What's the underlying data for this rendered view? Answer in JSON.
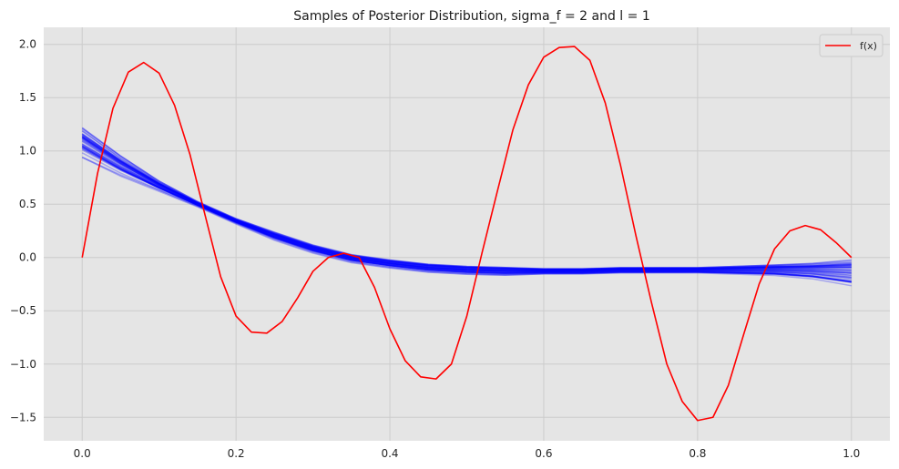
{
  "chart_data": {
    "type": "line",
    "title": "Samples of Posterior Distribution, sigma_f = 2 and l = 1",
    "xlabel": "",
    "ylabel": "",
    "xlim": [
      -0.05,
      1.05
    ],
    "ylim": [
      -1.72,
      2.16
    ],
    "xticks": [
      0.0,
      0.2,
      0.4,
      0.6,
      0.8,
      1.0
    ],
    "xtick_labels": [
      "0.0",
      "0.2",
      "0.4",
      "0.6",
      "0.8",
      "1.0"
    ],
    "yticks": [
      -1.5,
      -1.0,
      -0.5,
      0.0,
      0.5,
      1.0,
      1.5,
      2.0
    ],
    "ytick_labels": [
      "−1.5",
      "−1.0",
      "−0.5",
      "0.0",
      "0.5",
      "1.0",
      "1.5",
      "2.0"
    ],
    "grid": true,
    "legend_position": "top-right",
    "series": [
      {
        "name": "f(x)",
        "color": "#ff0000",
        "x": [
          0.0,
          0.02,
          0.04,
          0.06,
          0.08,
          0.1,
          0.12,
          0.14,
          0.16,
          0.18,
          0.2,
          0.22,
          0.24,
          0.26,
          0.28,
          0.3,
          0.32,
          0.34,
          0.36,
          0.38,
          0.4,
          0.42,
          0.44,
          0.46,
          0.48,
          0.5,
          0.52,
          0.54,
          0.56,
          0.58,
          0.6,
          0.62,
          0.64,
          0.66,
          0.68,
          0.7,
          0.72,
          0.74,
          0.76,
          0.78,
          0.8,
          0.82,
          0.84,
          0.86,
          0.88,
          0.9,
          0.92,
          0.94,
          0.96,
          0.98,
          1.0
        ],
        "y": [
          0.0,
          0.79,
          1.4,
          1.74,
          1.83,
          1.73,
          1.43,
          0.97,
          0.39,
          -0.18,
          -0.55,
          -0.7,
          -0.71,
          -0.6,
          -0.38,
          -0.13,
          0.0,
          0.04,
          0.0,
          -0.28,
          -0.67,
          -0.97,
          -1.12,
          -1.14,
          -1.0,
          -0.55,
          0.05,
          0.63,
          1.2,
          1.62,
          1.88,
          1.97,
          1.98,
          1.85,
          1.45,
          0.86,
          0.2,
          -0.42,
          -1.0,
          -1.35,
          -1.53,
          -1.5,
          -1.2,
          -0.72,
          -0.25,
          0.08,
          0.25,
          0.3,
          0.26,
          0.14,
          0.0
        ]
      }
    ],
    "samples": {
      "color": "#0000ff",
      "count": 40,
      "x": [
        0.0,
        0.05,
        0.1,
        0.15,
        0.2,
        0.25,
        0.3,
        0.35,
        0.4,
        0.45,
        0.5,
        0.55,
        0.6,
        0.65,
        0.7,
        0.75,
        0.8,
        0.85,
        0.9,
        0.95,
        1.0
      ],
      "mean": [
        1.08,
        0.86,
        0.67,
        0.5,
        0.34,
        0.2,
        0.08,
        -0.01,
        -0.06,
        -0.1,
        -0.12,
        -0.13,
        -0.13,
        -0.13,
        -0.12,
        -0.12,
        -0.12,
        -0.12,
        -0.12,
        -0.13,
        -0.15
      ],
      "spread": [
        0.12,
        0.08,
        0.04,
        0.02,
        0.02,
        0.03,
        0.03,
        0.03,
        0.03,
        0.03,
        0.03,
        0.03,
        0.02,
        0.02,
        0.02,
        0.02,
        0.02,
        0.03,
        0.04,
        0.06,
        0.1
      ]
    }
  }
}
